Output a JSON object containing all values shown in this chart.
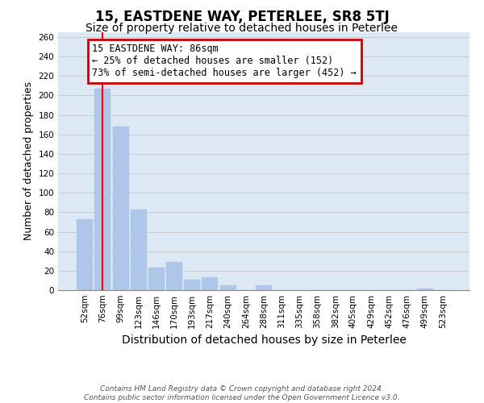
{
  "title": "15, EASTDENE WAY, PETERLEE, SR8 5TJ",
  "subtitle": "Size of property relative to detached houses in Peterlee",
  "xlabel": "Distribution of detached houses by size in Peterlee",
  "ylabel": "Number of detached properties",
  "footnote": "Contains HM Land Registry data © Crown copyright and database right 2024.\nContains public sector information licensed under the Open Government Licence v3.0.",
  "categories": [
    "52sqm",
    "76sqm",
    "99sqm",
    "123sqm",
    "146sqm",
    "170sqm",
    "193sqm",
    "217sqm",
    "240sqm",
    "264sqm",
    "288sqm",
    "311sqm",
    "335sqm",
    "358sqm",
    "382sqm",
    "405sqm",
    "429sqm",
    "452sqm",
    "476sqm",
    "499sqm",
    "523sqm"
  ],
  "values": [
    73,
    207,
    168,
    83,
    23,
    29,
    11,
    13,
    5,
    0,
    5,
    0,
    0,
    0,
    0,
    0,
    0,
    0,
    0,
    2,
    0
  ],
  "bar_color": "#aec6e8",
  "bar_edgecolor": "#aec6e8",
  "vline_x": 1.0,
  "vline_color": "red",
  "annotation_text": "15 EASTDENE WAY: 86sqm\n← 25% of detached houses are smaller (152)\n73% of semi-detached houses are larger (452) →",
  "annotation_box_edgecolor": "#cc0000",
  "annotation_box_facecolor": "white",
  "ylim": [
    0,
    265
  ],
  "yticks": [
    0,
    20,
    40,
    60,
    80,
    100,
    120,
    140,
    160,
    180,
    200,
    220,
    240,
    260
  ],
  "grid_color": "#cccccc",
  "background_color": "#dde8f5",
  "title_fontsize": 12,
  "subtitle_fontsize": 10,
  "xlabel_fontsize": 10,
  "ylabel_fontsize": 9,
  "tick_fontsize": 7.5,
  "annotation_fontsize": 8.5
}
